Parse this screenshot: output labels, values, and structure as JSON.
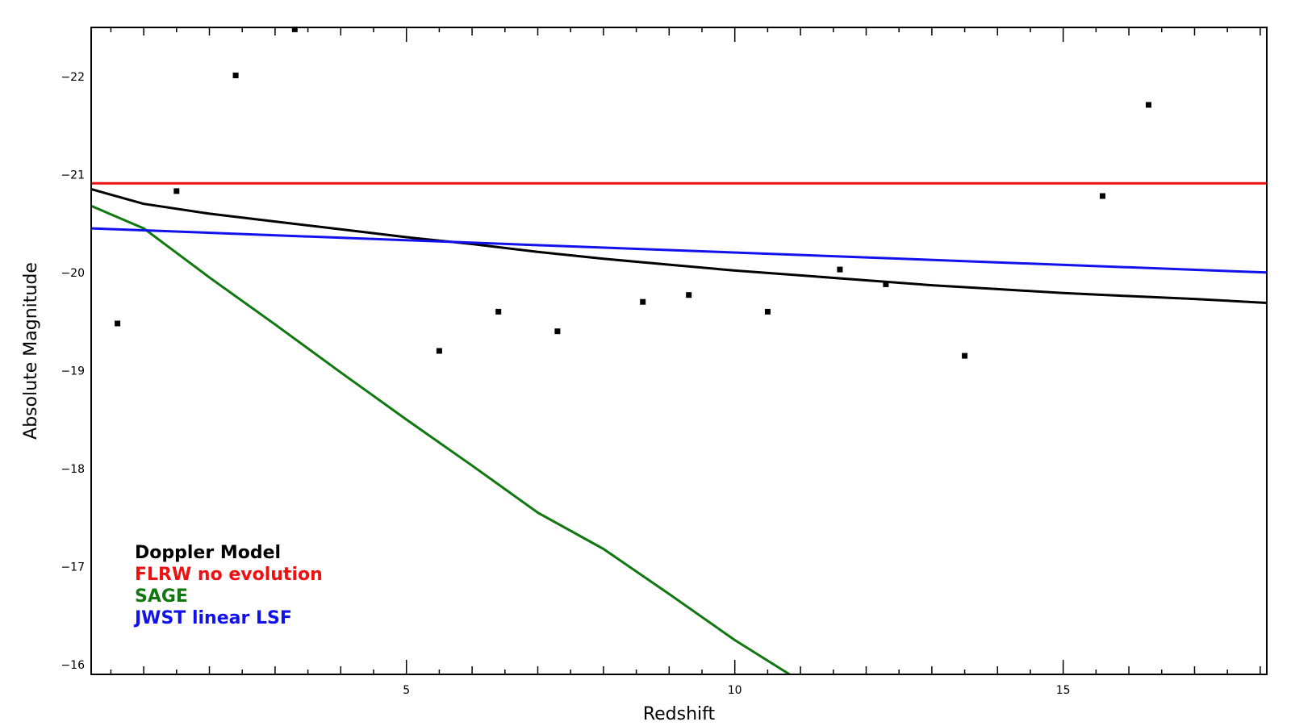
{
  "chart_data": {
    "type": "line",
    "title": "",
    "xlabel": "Redshift",
    "ylabel": "Absolute Magnitude",
    "xlim": [
      0.2,
      18.1
    ],
    "ylim": [
      -15.9,
      -22.5
    ],
    "y_axis_inverted": true,
    "x_major_ticks": [
      5,
      10,
      15
    ],
    "x_tick_labels": [
      "5",
      "10",
      "15"
    ],
    "y_major_ticks": [
      -16,
      -17,
      -18,
      -19,
      -20,
      -21,
      -22
    ],
    "y_tick_labels": [
      "−16",
      "−17",
      "−18",
      "−19",
      "−20",
      "−21",
      "−22"
    ],
    "grid": false,
    "legend_position": "bottom-left",
    "series": [
      {
        "name": "Doppler Model",
        "color": "#000000",
        "x": [
          0.2,
          1,
          2,
          3,
          4,
          5,
          6,
          7,
          8,
          9,
          10,
          11,
          12,
          13,
          14,
          15,
          16,
          17,
          18.1
        ],
        "y": [
          -20.85,
          -20.7,
          -20.6,
          -20.52,
          -20.44,
          -20.36,
          -20.29,
          -20.21,
          -20.14,
          -20.08,
          -20.02,
          -19.97,
          -19.92,
          -19.87,
          -19.83,
          -19.79,
          -19.76,
          -19.73,
          -19.69
        ]
      },
      {
        "name": "FLRW no evolution",
        "color": "#ee1111",
        "x": [
          0.2,
          18.1
        ],
        "y": [
          -20.91,
          -20.91
        ]
      },
      {
        "name": "SAGE",
        "color": "#117711",
        "x": [
          0.2,
          1,
          2,
          3,
          4,
          5,
          6,
          7,
          8,
          9,
          10,
          11,
          11.7
        ],
        "y": [
          -20.68,
          -20.45,
          -19.95,
          -19.47,
          -18.98,
          -18.5,
          -18.03,
          -17.55,
          -17.18,
          -16.72,
          -16.25,
          -15.83,
          -15.47
        ]
      },
      {
        "name": "JWST linear LSF",
        "color": "#1111ee",
        "x": [
          0.2,
          18.1
        ],
        "y": [
          -20.45,
          -20.0
        ]
      }
    ],
    "scatter": {
      "name": "data",
      "color": "#000000",
      "x": [
        0.6,
        1.5,
        2.4,
        3.3,
        5.5,
        6.4,
        7.3,
        8.6,
        9.3,
        10.5,
        11.6,
        12.3,
        13.5,
        15.6,
        16.3
      ],
      "y": [
        -19.48,
        -20.83,
        -22.01,
        -22.48,
        -19.2,
        -19.6,
        -19.4,
        -19.7,
        -19.77,
        -19.6,
        -20.03,
        -19.88,
        -19.15,
        -20.78,
        -21.71
      ]
    }
  }
}
